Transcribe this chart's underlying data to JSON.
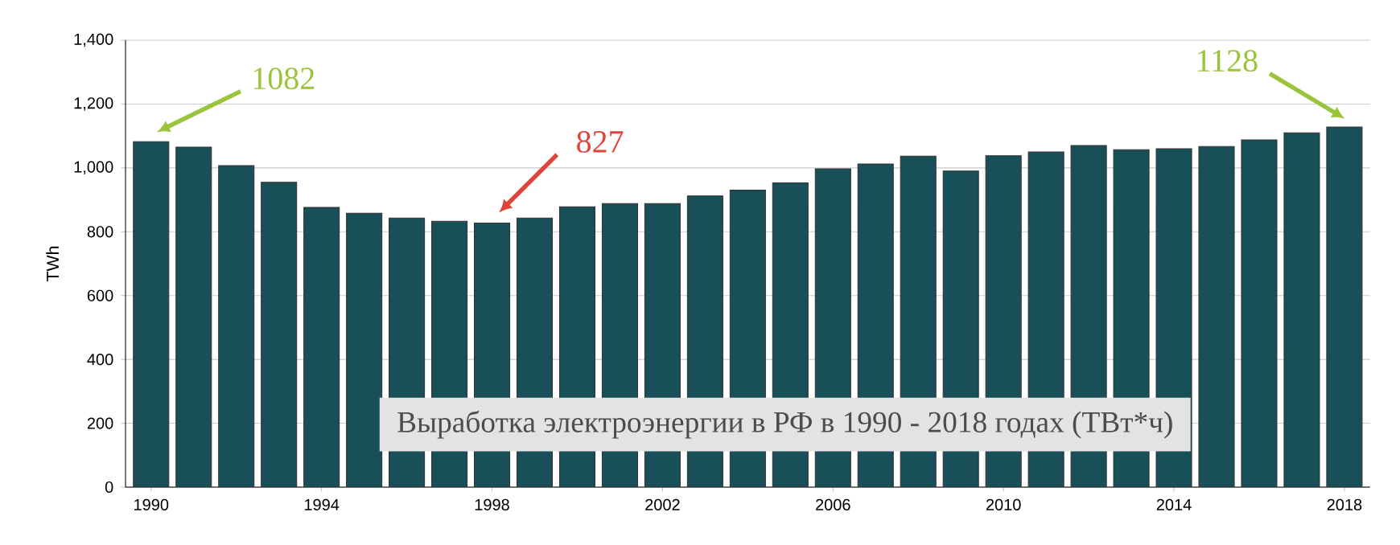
{
  "chart_data": {
    "type": "bar",
    "title": "Выработка электроэнергии в РФ в 1990 - 2018 годах (ТВт*ч)",
    "ylabel": "TWh",
    "categories": [
      "1990",
      null,
      null,
      null,
      "1994",
      null,
      null,
      null,
      "1998",
      null,
      null,
      null,
      "2002",
      null,
      null,
      null,
      "2006",
      null,
      null,
      null,
      "2010",
      null,
      null,
      null,
      "2014",
      null,
      null,
      null,
      "2018"
    ],
    "values": [
      1082,
      1065,
      1007,
      955,
      876,
      858,
      843,
      833,
      827,
      843,
      878,
      888,
      888,
      912,
      930,
      953,
      997,
      1012,
      1037,
      990,
      1038,
      1050,
      1070,
      1057,
      1060,
      1067,
      1088,
      1110,
      1128
    ],
    "color": "#184f58",
    "ylim": [
      0,
      1400
    ],
    "yticks": [
      {
        "value": 0,
        "label": "0"
      },
      {
        "value": 200,
        "label": "200"
      },
      {
        "value": 400,
        "label": "400"
      },
      {
        "value": 600,
        "label": "600"
      },
      {
        "value": 800,
        "label": "800"
      },
      {
        "value": 1000,
        "label": "1,000"
      },
      {
        "value": 1200,
        "label": "1,200"
      },
      {
        "value": 1400,
        "label": "1,400"
      }
    ],
    "grid": "y",
    "annotations": [
      "1082",
      "827",
      "1128"
    ]
  }
}
